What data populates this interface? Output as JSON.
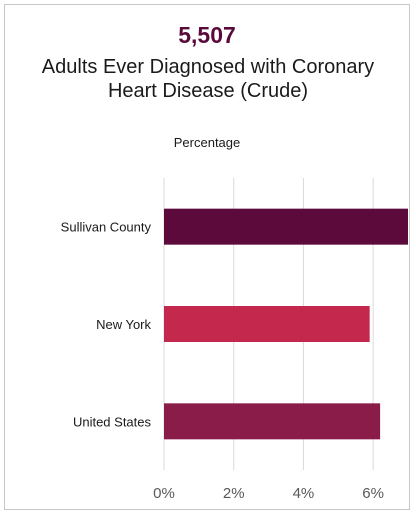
{
  "header": {
    "headline": "5,507",
    "title": "Adults Ever Diagnosed with Coronary Heart Disease (Crude)",
    "subtitle": "Percentage"
  },
  "chart_data": {
    "type": "bar",
    "orientation": "horizontal",
    "categories": [
      "Sullivan County",
      "New York",
      "United States"
    ],
    "values": [
      7.0,
      5.9,
      6.2
    ],
    "colors": [
      "#5c0a3c",
      "#c4284d",
      "#8a1c4a"
    ],
    "xticks": [
      "0%",
      "2%",
      "4%",
      "6%"
    ],
    "xtick_values": [
      0,
      2,
      4,
      6
    ],
    "xlim": [
      0,
      7.0
    ],
    "grid": true
  }
}
